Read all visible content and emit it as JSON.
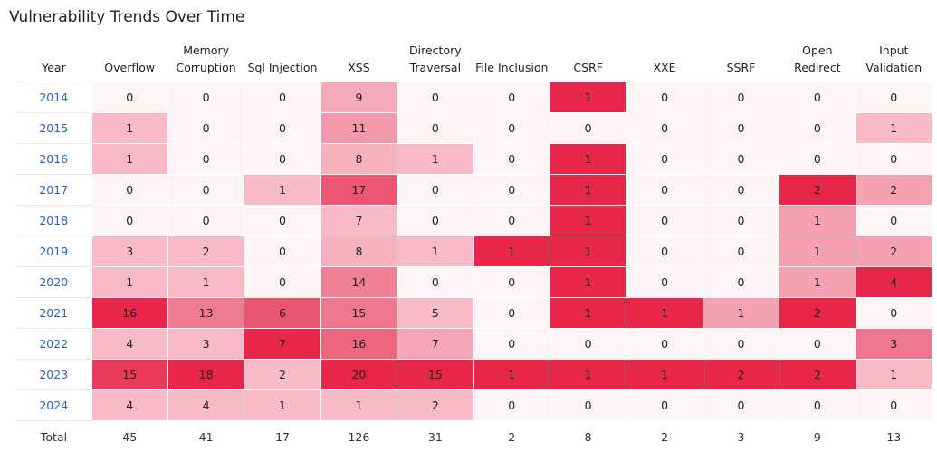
{
  "title": "Vulnerability Trends Over Time",
  "table": {
    "header": [
      "Year",
      "Overflow",
      "Memory Corruption",
      "Sql Injection",
      "XSS",
      "Directory Traversal",
      "File Inclusion",
      "CSRF",
      "XXE",
      "SSRF",
      "Open Redirect",
      "Input Validation"
    ],
    "rows": [
      [
        "2014",
        0,
        0,
        0,
        9,
        0,
        0,
        1,
        0,
        0,
        0,
        0
      ],
      [
        "2015",
        1,
        0,
        0,
        11,
        0,
        0,
        0,
        0,
        0,
        0,
        1
      ],
      [
        "2016",
        1,
        0,
        0,
        8,
        1,
        0,
        1,
        0,
        0,
        0,
        0
      ],
      [
        "2017",
        0,
        0,
        1,
        17,
        0,
        0,
        1,
        0,
        0,
        2,
        2
      ],
      [
        "2018",
        0,
        0,
        0,
        7,
        0,
        0,
        1,
        0,
        0,
        1,
        0
      ],
      [
        "2019",
        3,
        2,
        0,
        8,
        1,
        1,
        1,
        0,
        0,
        1,
        2
      ],
      [
        "2020",
        1,
        1,
        0,
        14,
        0,
        0,
        1,
        0,
        0,
        1,
        4
      ],
      [
        "2021",
        16,
        13,
        6,
        15,
        5,
        0,
        1,
        1,
        1,
        2,
        0
      ],
      [
        "2022",
        4,
        3,
        7,
        16,
        7,
        0,
        0,
        0,
        0,
        0,
        3
      ],
      [
        "2023",
        15,
        18,
        2,
        20,
        15,
        1,
        1,
        1,
        2,
        2,
        1
      ],
      [
        "2024",
        4,
        4,
        1,
        1,
        2,
        0,
        0,
        0,
        0,
        0,
        0
      ]
    ],
    "total": [
      "Total",
      45,
      41,
      17,
      126,
      31,
      2,
      8,
      2,
      3,
      9,
      13
    ]
  }
}
